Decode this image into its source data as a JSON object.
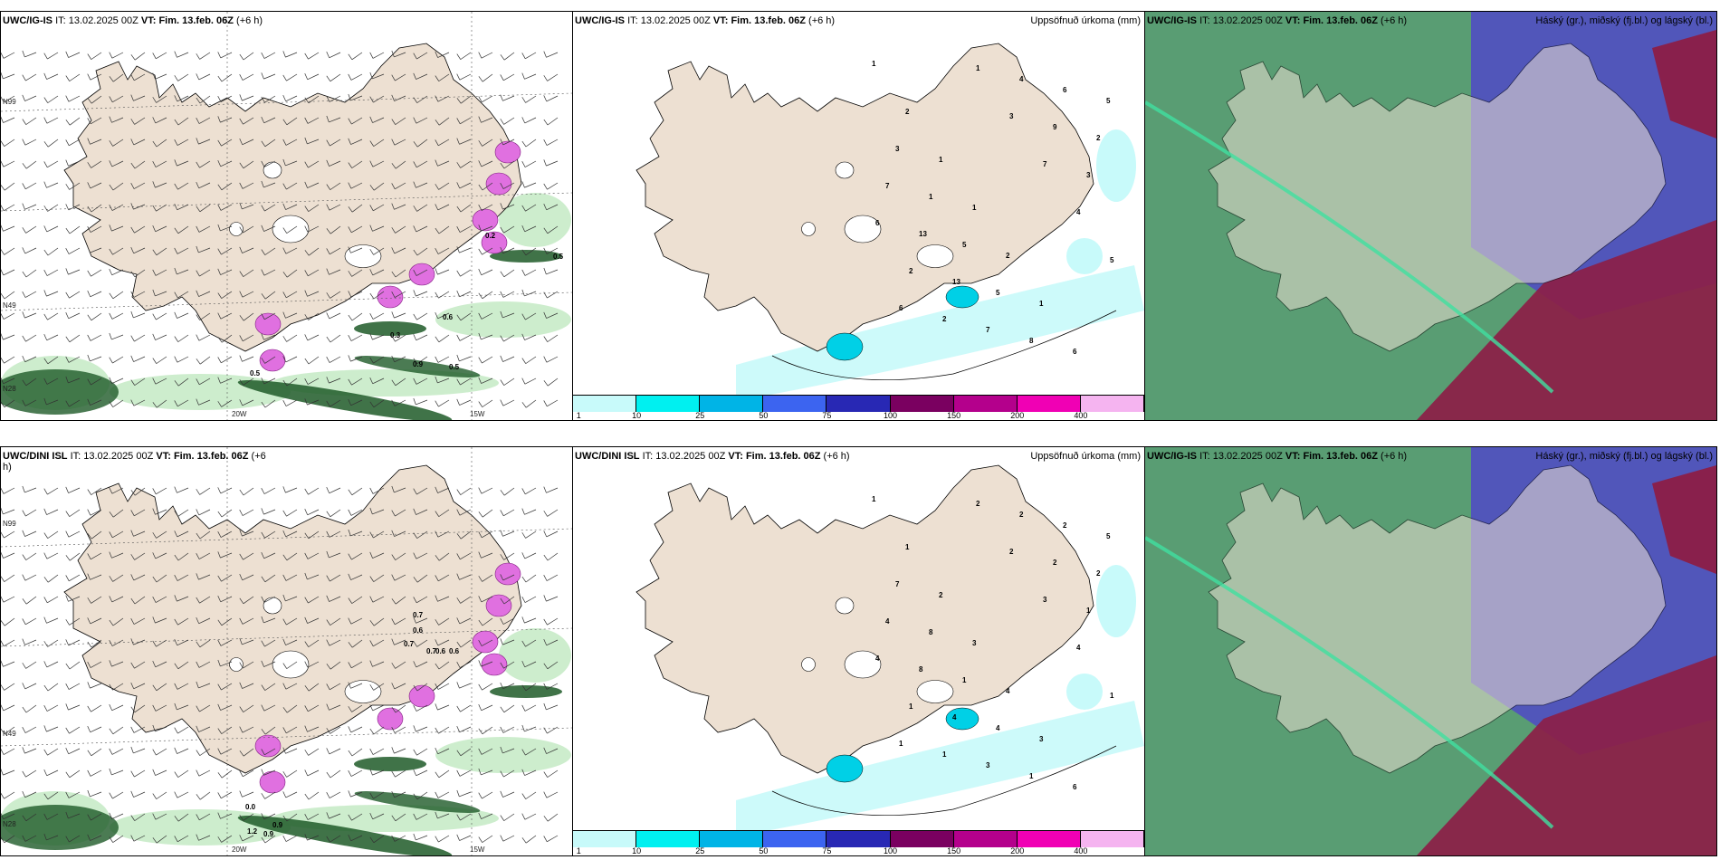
{
  "panels": [
    {
      "model": "UWC/IG-IS",
      "it_label": "IT:",
      "it": "13.02.2025 00Z",
      "vt_label": "VT:",
      "vt": "Fim. 13.feb. 06Z",
      "lead": "(+6 h)",
      "right_title": "",
      "axes": {
        "lat_top": "N99",
        "lat_mid": "N49",
        "lat_bottom": "N28",
        "lon_left": "20W",
        "lon_right": "15W"
      }
    },
    {
      "model": "UWC/IG-IS",
      "it_label": "IT:",
      "it": "13.02.2025 00Z",
      "vt_label": "VT:",
      "vt": "Fim. 13.feb. 06Z",
      "lead": "(+6 h)",
      "right_title": "Uppsöfnuð úrkoma (mm)",
      "colorbar": {
        "colors": [
          "#c8fafa",
          "#00f0f0",
          "#00b4e6",
          "#3c64f0",
          "#2828b4",
          "#7a0060",
          "#b4008c",
          "#f000b4",
          "#f5b4f0"
        ],
        "labels": [
          "1",
          "10",
          "25",
          "50",
          "75",
          "100",
          "150",
          "200",
          "400"
        ]
      },
      "point_values": [
        "1",
        "2",
        "1",
        "1",
        "2",
        "1",
        "6",
        "5",
        "3",
        "1",
        "5",
        "5",
        "8",
        "6",
        "2",
        "7",
        "13",
        "13",
        "7",
        "4",
        "9",
        "3",
        "6",
        "2",
        "2",
        "1",
        "3",
        "7",
        "4",
        "5",
        "6"
      ]
    },
    {
      "model": "UWC/IG-IS",
      "it_label": "IT:",
      "it": "13.02.2025 00Z",
      "vt_label": "VT:",
      "vt": "Fim. 13.feb. 06Z",
      "lead": "(+6 h)",
      "right_title": "Háský (gr.), miðský (fj.bl.) og lágský (bl.)"
    },
    {
      "model": "UWC/DINI ISL",
      "it_label": "IT:",
      "it": "13.02.2025 00Z",
      "vt_label": "VT:",
      "vt": "Fim. 13.feb. 06Z",
      "lead": "(+6 h)",
      "right_title": "",
      "axes": {
        "lat_top": "N99",
        "lat_mid": "N49",
        "lat_bottom": "N28",
        "lon_left": "20W",
        "lon_right": "15W"
      }
    },
    {
      "model": "UWC/DINI ISL",
      "it_label": "IT:",
      "it": "13.02.2025 00Z",
      "vt_label": "VT:",
      "vt": "Fim. 13.feb. 06Z",
      "lead": "(+6 h)",
      "right_title": "Uppsöfnuð úrkoma (mm)",
      "colorbar": {
        "colors": [
          "#c8fafa",
          "#00f0f0",
          "#00b4e6",
          "#3c64f0",
          "#2828b4",
          "#7a0060",
          "#b4008c",
          "#f000b4",
          "#f5b4f0"
        ],
        "labels": [
          "1",
          "10",
          "25",
          "50",
          "75",
          "100",
          "150",
          "200",
          "400"
        ]
      },
      "point_values": [
        "1",
        "1",
        "2",
        "3",
        "4",
        "3",
        "6",
        "5",
        "7",
        "8",
        "1",
        "4",
        "1",
        "2",
        "2",
        "4",
        "8",
        "4",
        "3",
        "2",
        "2",
        "1",
        "4",
        "1",
        "1",
        "2",
        "2",
        "3",
        "4",
        "1",
        "1"
      ]
    },
    {
      "model": "UWC/IG-IS",
      "it_label": "IT:",
      "it": "13.02.2025 00Z",
      "vt_label": "VT:",
      "vt": "Fim. 13.feb. 06Z",
      "lead": "(+6 h)",
      "right_title": "Háský (gr.), miðský (fj.bl.) og lágský (bl.)"
    }
  ],
  "panel1_labels": [
    "0.5",
    "0.6",
    "0.3",
    "0.2",
    "0.5",
    "0.9",
    "0.5"
  ],
  "panel4_labels": [
    "0.7",
    "0.6",
    "0.7",
    "0.6",
    "0.6",
    "0.9",
    "1.2",
    "0.0",
    "0.9",
    "0.7"
  ],
  "colors": {
    "land": "#ede0d2",
    "snow": "#ffffff",
    "sea": "#ffffff",
    "wind_green": "#c8ebc8",
    "dark_green": "#1e5a28",
    "purple": "#e070e0",
    "cloud_green": "#3c8c5a",
    "cloud_blue": "#5050c0",
    "cloud_maroon": "#8c1e46",
    "precip_light": "#c8fafa"
  }
}
